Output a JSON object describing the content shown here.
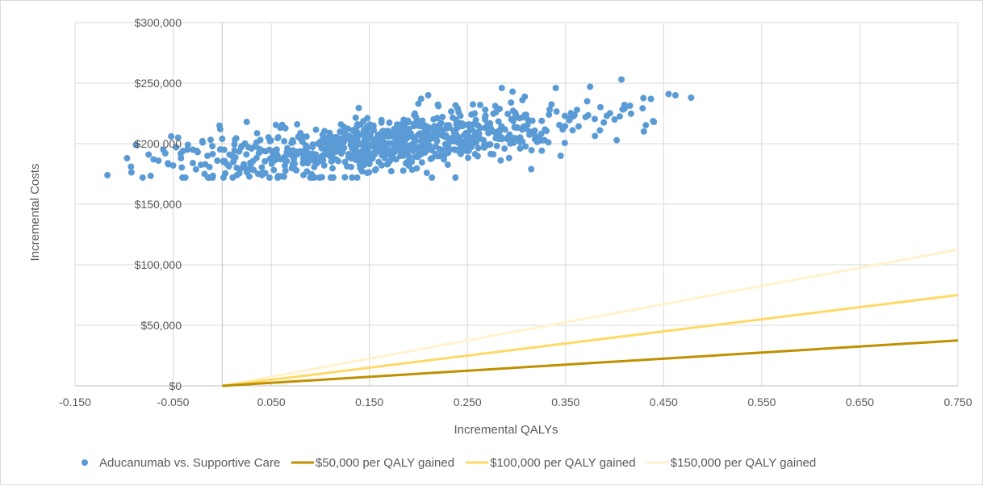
{
  "chart_data": {
    "type": "scatter",
    "title": "",
    "xlabel": "Incremental QALYs",
    "ylabel": "Incremental Costs",
    "xlim": [
      -0.15,
      0.75
    ],
    "ylim": [
      0,
      300000
    ],
    "x_ticks": [
      -0.15,
      -0.05,
      0.05,
      0.15,
      0.25,
      0.35,
      0.45,
      0.55,
      0.65,
      0.75
    ],
    "x_tick_labels": [
      "-0.150",
      "-0.050",
      "0.050",
      "0.150",
      "0.250",
      "0.350",
      "0.450",
      "0.550",
      "0.650",
      "0.750"
    ],
    "y_ticks": [
      0,
      50000,
      100000,
      150000,
      200000,
      250000,
      300000
    ],
    "y_tick_labels": [
      "$0",
      "$50,000",
      "$100,000",
      "$150,000",
      "$200,000",
      "$250,000",
      "$300,000"
    ],
    "grid": true,
    "legend_position": "bottom",
    "series": [
      {
        "name": "Aducanumab vs. Supportive Care",
        "kind": "scatter",
        "color": "#5b9bd5",
        "points": [
          [
            -0.117,
            174000
          ],
          [
            -0.097,
            188000
          ],
          [
            -0.093,
            181000
          ],
          [
            -0.088,
            199000
          ],
          [
            -0.075,
            191000
          ],
          [
            -0.07,
            187000
          ],
          [
            -0.065,
            186000
          ],
          [
            -0.06,
            195000
          ],
          [
            -0.058,
            192000
          ],
          [
            -0.055,
            183000
          ],
          [
            -0.052,
            206000
          ],
          [
            -0.05,
            182000
          ],
          [
            -0.047,
            197000
          ],
          [
            -0.045,
            205000
          ],
          [
            -0.042,
            188000
          ],
          [
            -0.04,
            194000
          ],
          [
            -0.035,
            199000
          ],
          [
            -0.03,
            195000
          ],
          [
            -0.025,
            193000
          ],
          [
            -0.02,
            201000
          ],
          [
            -0.018,
            175000
          ],
          [
            -0.015,
            190000
          ],
          [
            -0.01,
            198000
          ],
          [
            -0.005,
            186000
          ],
          [
            -0.002,
            212000
          ],
          [
            0.0,
            204000
          ],
          [
            0.002,
            195000
          ],
          [
            0.005,
            183000
          ],
          [
            0.01,
            190000
          ],
          [
            0.015,
            174000
          ],
          [
            0.02,
            198000
          ],
          [
            0.022,
            183000
          ],
          [
            0.025,
            218000
          ],
          [
            0.03,
            196000
          ],
          [
            0.035,
            201000
          ],
          [
            0.478,
            238000
          ],
          [
            0.462,
            240000
          ],
          [
            0.455,
            241000
          ],
          [
            0.44,
            218000
          ],
          [
            0.437,
            237000
          ],
          [
            0.407,
            253000
          ],
          [
            0.41,
            232000
          ],
          [
            0.4,
            220000
          ],
          [
            0.392,
            223000
          ],
          [
            0.385,
            211000
          ],
          [
            0.375,
            247000
          ],
          [
            0.372,
            235000
          ],
          [
            0.345,
            190000
          ],
          [
            0.34,
            246000
          ],
          [
            0.315,
            179000
          ],
          [
            0.285,
            246000
          ],
          [
            0.296,
            243000
          ],
          [
            0.306,
            236000
          ],
          [
            0.279,
            226000
          ],
          [
            0.263,
            232000
          ],
          [
            0.24,
            229000
          ],
          [
            0.23,
            196000
          ],
          [
            0.226,
            187000
          ],
          [
            0.21,
            240000
          ],
          [
            0.2,
            233000
          ],
          [
            0.185,
            219000
          ],
          [
            0.175,
            212000
          ],
          [
            0.165,
            196000
          ],
          [
            0.158,
            205000
          ],
          [
            0.15,
            214000
          ]
        ]
      },
      {
        "name": "$50,000 per QALY gained",
        "kind": "line",
        "wtp": 50000,
        "color": "#bf9000"
      },
      {
        "name": "$100,000 per QALY gained",
        "kind": "line",
        "wtp": 100000,
        "color": "#ffd966"
      },
      {
        "name": "$150,000 per QALY gained",
        "kind": "line",
        "wtp": 150000,
        "color": "#fff2cc"
      }
    ]
  }
}
